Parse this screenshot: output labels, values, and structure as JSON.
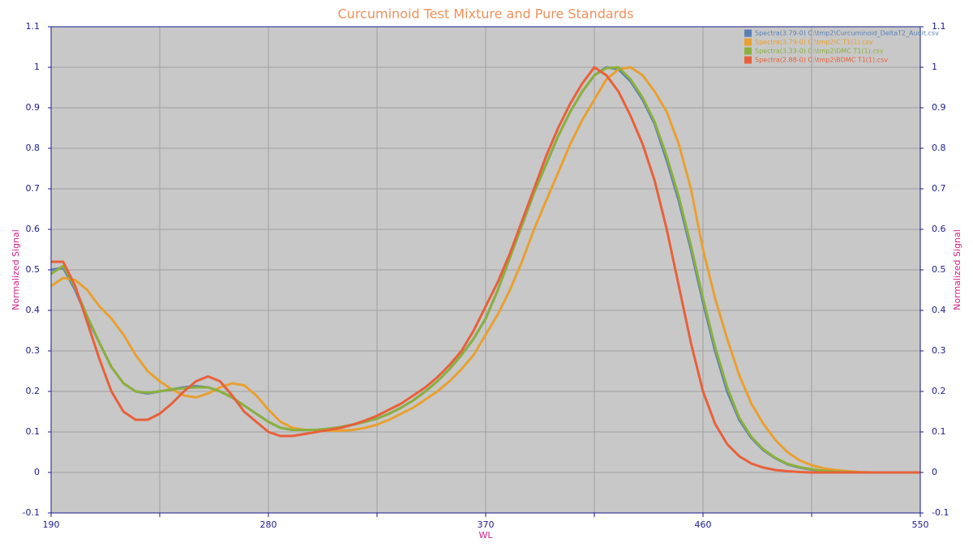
{
  "chart_data": {
    "type": "line",
    "title": "Curcuminoid Test Mixture and Pure Standards",
    "x_label": "WL",
    "y_label": "Normalized Signal",
    "y2_label": "Normalized Signal",
    "x": [
      190,
      195,
      200,
      205,
      210,
      215,
      220,
      225,
      230,
      235,
      240,
      245,
      250,
      255,
      260,
      265,
      270,
      275,
      280,
      285,
      290,
      295,
      300,
      305,
      310,
      315,
      320,
      325,
      330,
      335,
      340,
      345,
      350,
      355,
      360,
      365,
      370,
      375,
      380,
      385,
      390,
      395,
      400,
      405,
      410,
      415,
      420,
      425,
      430,
      435,
      440,
      445,
      450,
      455,
      460,
      465,
      470,
      475,
      480,
      485,
      490,
      495,
      500,
      505,
      510,
      515,
      520,
      525,
      530,
      535,
      540,
      545,
      550
    ],
    "series": [
      {
        "name": "Spectra(3.79-0) C:\\tmp2\\Curcuminoid_DeltaT2_Audit.csv",
        "color": "#5b7fb5",
        "values": [
          0.5,
          0.505,
          0.45,
          0.38,
          0.32,
          0.26,
          0.22,
          0.2,
          0.195,
          0.2,
          0.205,
          0.21,
          0.213,
          0.21,
          0.2,
          0.185,
          0.165,
          0.145,
          0.125,
          0.11,
          0.105,
          0.105,
          0.105,
          0.108,
          0.112,
          0.118,
          0.125,
          0.133,
          0.145,
          0.16,
          0.178,
          0.2,
          0.225,
          0.255,
          0.29,
          0.33,
          0.38,
          0.45,
          0.53,
          0.61,
          0.69,
          0.76,
          0.83,
          0.89,
          0.94,
          0.98,
          1.0,
          0.995,
          0.965,
          0.92,
          0.86,
          0.77,
          0.67,
          0.55,
          0.42,
          0.3,
          0.2,
          0.13,
          0.085,
          0.055,
          0.035,
          0.02,
          0.012,
          0.007,
          0.004,
          0.002,
          0.001,
          0,
          0,
          0,
          0,
          0,
          0
        ]
      },
      {
        "name": "Spectra(3.79-0) C:\\tmp2\\C T1(1).csv",
        "color": "#e8a030",
        "values": [
          0.46,
          0.48,
          0.475,
          0.45,
          0.41,
          0.38,
          0.34,
          0.29,
          0.25,
          0.225,
          0.205,
          0.19,
          0.185,
          0.195,
          0.21,
          0.22,
          0.215,
          0.19,
          0.155,
          0.125,
          0.11,
          0.105,
          0.105,
          0.103,
          0.103,
          0.105,
          0.11,
          0.118,
          0.13,
          0.145,
          0.16,
          0.18,
          0.2,
          0.225,
          0.255,
          0.29,
          0.34,
          0.39,
          0.45,
          0.52,
          0.6,
          0.67,
          0.74,
          0.81,
          0.87,
          0.92,
          0.97,
          0.995,
          1.0,
          0.98,
          0.94,
          0.89,
          0.81,
          0.7,
          0.55,
          0.43,
          0.33,
          0.24,
          0.17,
          0.12,
          0.08,
          0.05,
          0.03,
          0.018,
          0.01,
          0.006,
          0.003,
          0.001,
          0,
          0,
          0,
          0,
          0
        ]
      },
      {
        "name": "Spectra(3.33-0) C:\\tmp2\\DMC T1(1).csv",
        "color": "#8cb03c",
        "values": [
          0.49,
          0.51,
          0.455,
          0.385,
          0.32,
          0.26,
          0.22,
          0.2,
          0.197,
          0.2,
          0.205,
          0.208,
          0.21,
          0.21,
          0.2,
          0.185,
          0.165,
          0.145,
          0.125,
          0.11,
          0.105,
          0.105,
          0.105,
          0.108,
          0.112,
          0.118,
          0.125,
          0.133,
          0.145,
          0.16,
          0.178,
          0.2,
          0.225,
          0.255,
          0.29,
          0.33,
          0.38,
          0.45,
          0.53,
          0.61,
          0.69,
          0.76,
          0.83,
          0.89,
          0.94,
          0.98,
          0.998,
          1.0,
          0.97,
          0.925,
          0.865,
          0.78,
          0.68,
          0.56,
          0.43,
          0.31,
          0.21,
          0.135,
          0.088,
          0.057,
          0.036,
          0.021,
          0.013,
          0.008,
          0.004,
          0.002,
          0.001,
          0,
          0,
          0,
          0,
          0,
          0
        ]
      },
      {
        "name": "Spectra(2.88-0) C:\\tmp2\\BDMC T1(1).csv",
        "color": "#e8603a",
        "values": [
          0.52,
          0.52,
          0.46,
          0.37,
          0.28,
          0.2,
          0.15,
          0.13,
          0.13,
          0.145,
          0.17,
          0.2,
          0.225,
          0.237,
          0.225,
          0.19,
          0.15,
          0.125,
          0.1,
          0.09,
          0.09,
          0.095,
          0.1,
          0.105,
          0.11,
          0.118,
          0.128,
          0.14,
          0.155,
          0.17,
          0.19,
          0.21,
          0.235,
          0.265,
          0.3,
          0.35,
          0.41,
          0.47,
          0.54,
          0.62,
          0.7,
          0.78,
          0.85,
          0.91,
          0.96,
          1.0,
          0.98,
          0.94,
          0.88,
          0.81,
          0.72,
          0.6,
          0.46,
          0.32,
          0.2,
          0.12,
          0.07,
          0.04,
          0.022,
          0.012,
          0.006,
          0.003,
          0.001,
          0,
          0,
          0,
          0,
          0,
          0,
          0,
          0,
          0,
          0
        ]
      }
    ],
    "xlim": [
      190,
      550
    ],
    "xticks": [
      190,
      280,
      370,
      460,
      550
    ],
    "x_minor_ticks": [
      235,
      325,
      415,
      505
    ],
    "ylim": [
      -0.1,
      1.1
    ],
    "yticks": [
      -0.1,
      0,
      0.1,
      0.2,
      0.3,
      0.4,
      0.5,
      0.6,
      0.7,
      0.8,
      0.9,
      1,
      1.1
    ],
    "y2lim": [
      -0.1,
      1.1
    ],
    "y2ticks": [
      -0.1,
      0,
      0.1,
      0.2,
      0.3,
      0.4,
      0.5,
      0.6,
      0.7,
      0.8,
      0.9,
      1,
      1.1
    ],
    "grid": true,
    "legend": "top-right"
  }
}
